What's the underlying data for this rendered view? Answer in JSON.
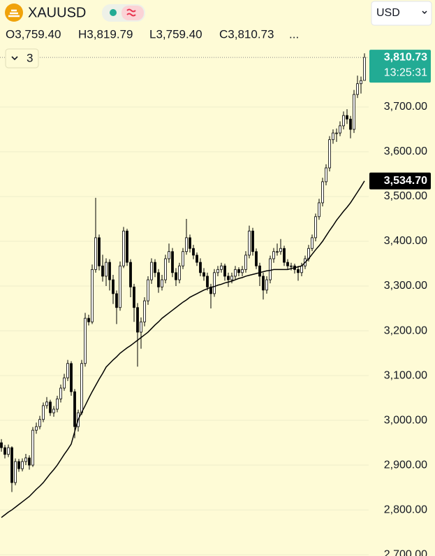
{
  "chart_data": {
    "type": "candlestick",
    "symbol": "XAUUSD",
    "ohlc_legend": [
      "O3,759.40",
      "H3,819.79",
      "L3,759.40",
      "C3,810.73"
    ],
    "ellipsis": "...",
    "currency": "USD",
    "indicator_count": 3,
    "ylim": [
      2697,
      3939
    ],
    "yticks": [
      {
        "value": 2700,
        "label": "2,700.00"
      },
      {
        "value": 2800,
        "label": "2,800.00"
      },
      {
        "value": 2900,
        "label": "2,900.00"
      },
      {
        "value": 3000,
        "label": "3,000.00"
      },
      {
        "value": 3100,
        "label": "3,100.00"
      },
      {
        "value": 3200,
        "label": "3,200.00"
      },
      {
        "value": 3300,
        "label": "3,300.00"
      },
      {
        "value": 3400,
        "label": "3,400.00"
      },
      {
        "value": 3500,
        "label": "3,500.00"
      },
      {
        "value": 3600,
        "label": "3,600.00"
      },
      {
        "value": 3700,
        "label": "3,700.00"
      }
    ],
    "grid": true,
    "up_color": "#ffffff",
    "down_color": "#000000",
    "wick_color": "#000000",
    "ma_color": "#000000",
    "last_price": {
      "value": 3810.73,
      "label": "3,810.73",
      "color": "#22ab94"
    },
    "countdown": "13:25:31",
    "ma_price": {
      "value": 3534.7,
      "label": "3,534.70",
      "color": "#000000"
    },
    "ohlc": [
      [
        2950,
        2958,
        2930,
        2939
      ],
      [
        2939,
        2945,
        2915,
        2924
      ],
      [
        2924,
        2946,
        2918,
        2939
      ],
      [
        2939,
        2942,
        2840,
        2861
      ],
      [
        2861,
        2915,
        2855,
        2908
      ],
      [
        2908,
        2914,
        2885,
        2892
      ],
      [
        2892,
        2915,
        2886,
        2908
      ],
      [
        2908,
        2925,
        2900,
        2916
      ],
      [
        2916,
        2922,
        2890,
        2900
      ],
      [
        2900,
        2985,
        2896,
        2978
      ],
      [
        2978,
        2995,
        2970,
        2986
      ],
      [
        2986,
        3010,
        2980,
        3002
      ],
      [
        3002,
        3040,
        2996,
        3033
      ],
      [
        3033,
        3052,
        3026,
        3041
      ],
      [
        3041,
        3046,
        3010,
        3017
      ],
      [
        3017,
        3032,
        3008,
        3025
      ],
      [
        3025,
        3055,
        3018,
        3048
      ],
      [
        3048,
        3080,
        3040,
        3072
      ],
      [
        3072,
        3104,
        3066,
        3095
      ],
      [
        3095,
        3135,
        3088,
        3127
      ],
      [
        3127,
        3132,
        3055,
        3064
      ],
      [
        3064,
        3070,
        2960,
        2986
      ],
      [
        2986,
        3024,
        2975,
        3017
      ],
      [
        3017,
        3135,
        3012,
        3127
      ],
      [
        3127,
        3240,
        3120,
        3228
      ],
      [
        3228,
        3236,
        3212,
        3220
      ],
      [
        3220,
        3348,
        3215,
        3337
      ],
      [
        3337,
        3497,
        3330,
        3408
      ],
      [
        3408,
        3415,
        3335,
        3345
      ],
      [
        3345,
        3370,
        3310,
        3322
      ],
      [
        3322,
        3362,
        3300,
        3353
      ],
      [
        3353,
        3360,
        3290,
        3314
      ],
      [
        3314,
        3325,
        3260,
        3283
      ],
      [
        3283,
        3290,
        3215,
        3252
      ],
      [
        3252,
        3355,
        3245,
        3345
      ],
      [
        3345,
        3432,
        3340,
        3423
      ],
      [
        3423,
        3428,
        3345,
        3353
      ],
      [
        3353,
        3360,
        3275,
        3298
      ],
      [
        3298,
        3305,
        3220,
        3252
      ],
      [
        3252,
        3262,
        3120,
        3197
      ],
      [
        3197,
        3230,
        3160,
        3220
      ],
      [
        3220,
        3275,
        3210,
        3267
      ],
      [
        3267,
        3322,
        3258,
        3314
      ],
      [
        3314,
        3362,
        3305,
        3353
      ],
      [
        3353,
        3360,
        3320,
        3330
      ],
      [
        3330,
        3338,
        3285,
        3298
      ],
      [
        3298,
        3325,
        3290,
        3314
      ],
      [
        3314,
        3370,
        3306,
        3361
      ],
      [
        3361,
        3395,
        3352,
        3377
      ],
      [
        3377,
        3385,
        3320,
        3330
      ],
      [
        3330,
        3340,
        3300,
        3314
      ],
      [
        3314,
        3352,
        3306,
        3345
      ],
      [
        3345,
        3385,
        3338,
        3377
      ],
      [
        3377,
        3450,
        3370,
        3408
      ],
      [
        3408,
        3415,
        3375,
        3384
      ],
      [
        3384,
        3392,
        3360,
        3369
      ],
      [
        3369,
        3375,
        3345,
        3353
      ],
      [
        3353,
        3362,
        3322,
        3330
      ],
      [
        3330,
        3340,
        3312,
        3322
      ],
      [
        3322,
        3330,
        3290,
        3298
      ],
      [
        3298,
        3305,
        3250,
        3283
      ],
      [
        3283,
        3338,
        3276,
        3330
      ],
      [
        3330,
        3345,
        3322,
        3337
      ],
      [
        3337,
        3352,
        3330,
        3345
      ],
      [
        3345,
        3350,
        3312,
        3322
      ],
      [
        3322,
        3330,
        3298,
        3314
      ],
      [
        3314,
        3330,
        3306,
        3322
      ],
      [
        3322,
        3345,
        3315,
        3337
      ],
      [
        3337,
        3342,
        3322,
        3330
      ],
      [
        3330,
        3345,
        3322,
        3337
      ],
      [
        3337,
        3378,
        3330,
        3369
      ],
      [
        3369,
        3435,
        3362,
        3423
      ],
      [
        3423,
        3430,
        3368,
        3377
      ],
      [
        3377,
        3384,
        3338,
        3345
      ],
      [
        3345,
        3352,
        3300,
        3322
      ],
      [
        3322,
        3330,
        3270,
        3291
      ],
      [
        3291,
        3322,
        3283,
        3314
      ],
      [
        3314,
        3368,
        3306,
        3361
      ],
      [
        3361,
        3385,
        3352,
        3377
      ],
      [
        3377,
        3395,
        3368,
        3377
      ],
      [
        3377,
        3405,
        3370,
        3384
      ],
      [
        3384,
        3390,
        3345,
        3353
      ],
      [
        3353,
        3360,
        3336,
        3345
      ],
      [
        3345,
        3352,
        3335,
        3345
      ],
      [
        3345,
        3350,
        3328,
        3337
      ],
      [
        3337,
        3345,
        3312,
        3330
      ],
      [
        3330,
        3352,
        3322,
        3345
      ],
      [
        3345,
        3368,
        3338,
        3361
      ],
      [
        3361,
        3392,
        3355,
        3384
      ],
      [
        3384,
        3415,
        3378,
        3408
      ],
      [
        3408,
        3462,
        3400,
        3455
      ],
      [
        3455,
        3495,
        3448,
        3486
      ],
      [
        3486,
        3542,
        3478,
        3533
      ],
      [
        3533,
        3572,
        3525,
        3564
      ],
      [
        3564,
        3635,
        3556,
        3627
      ],
      [
        3627,
        3650,
        3618,
        3642
      ],
      [
        3642,
        3652,
        3622,
        3642
      ],
      [
        3642,
        3668,
        3635,
        3658
      ],
      [
        3658,
        3690,
        3650,
        3681
      ],
      [
        3681,
        3695,
        3662,
        3673
      ],
      [
        3673,
        3680,
        3630,
        3650
      ],
      [
        3650,
        3738,
        3642,
        3728
      ],
      [
        3728,
        3770,
        3720,
        3752
      ],
      [
        3752,
        3768,
        3730,
        3759
      ],
      [
        3759.4,
        3819.79,
        3759.4,
        3810.73
      ]
    ],
    "ma": [
      2783,
      2789,
      2795,
      2800,
      2806,
      2812,
      2818,
      2824,
      2830,
      2838,
      2846,
      2853,
      2861,
      2871,
      2881,
      2890,
      2900,
      2912,
      2924,
      2935,
      2947,
      2975,
      3002,
      3018,
      3033,
      3049,
      3064,
      3078,
      3092,
      3105,
      3119,
      3127,
      3135,
      3142,
      3150,
      3156,
      3162,
      3167,
      3173,
      3179,
      3185,
      3191,
      3197,
      3205,
      3213,
      3220,
      3228,
      3234,
      3240,
      3246,
      3252,
      3258,
      3264,
      3269,
      3275,
      3279,
      3283,
      3287,
      3291,
      3294,
      3297,
      3299,
      3302,
      3304,
      3307,
      3309,
      3311,
      3314,
      3317,
      3319,
      3322,
      3324,
      3326,
      3328,
      3330,
      3332,
      3334,
      3335,
      3337,
      3337,
      3337,
      3337,
      3337,
      3339,
      3341,
      3343,
      3345,
      3353,
      3361,
      3371,
      3381,
      3390,
      3400,
      3412,
      3424,
      3435,
      3447,
      3457,
      3467,
      3476,
      3486,
      3498,
      3510,
      3522,
      3534.7
    ]
  }
}
